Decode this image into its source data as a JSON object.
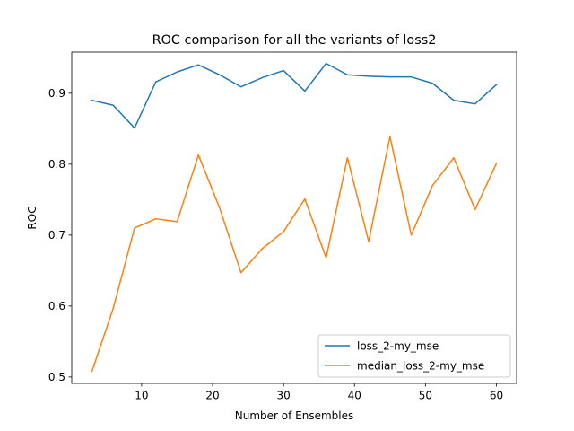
{
  "chart_data": {
    "type": "line",
    "title": "ROC comparison for all the variants of loss2",
    "xlabel": "Number of Ensembles",
    "ylabel": "ROC",
    "xlim": [
      0.15,
      62.85
    ],
    "ylim": [
      0.491,
      0.958
    ],
    "xticks": [
      10,
      20,
      30,
      40,
      50,
      60
    ],
    "yticks": [
      0.5,
      0.6,
      0.7,
      0.8,
      0.9
    ],
    "ytick_labels": [
      "0.5",
      "0.6",
      "0.7",
      "0.8",
      "0.9"
    ],
    "grid": false,
    "legend_position": "lower-right",
    "x": [
      3,
      6,
      9,
      12,
      15,
      18,
      21,
      24,
      27,
      30,
      33,
      36,
      39,
      42,
      45,
      48,
      51,
      54,
      57,
      60
    ],
    "series": [
      {
        "name": "loss_2-my_mse",
        "color": "#1f77b4",
        "values": [
          0.89,
          0.883,
          0.851,
          0.916,
          0.93,
          0.94,
          0.926,
          0.909,
          0.922,
          0.932,
          0.903,
          0.942,
          0.926,
          0.924,
          0.923,
          0.923,
          0.914,
          0.89,
          0.885,
          0.912
        ]
      },
      {
        "name": "median_loss_2-my_mse",
        "color": "#ff7f0e",
        "values": [
          0.508,
          0.597,
          0.71,
          0.723,
          0.719,
          0.813,
          0.738,
          0.647,
          0.681,
          0.705,
          0.751,
          0.668,
          0.809,
          0.691,
          0.839,
          0.7,
          0.77,
          0.809,
          0.736,
          0.801
        ]
      }
    ]
  }
}
